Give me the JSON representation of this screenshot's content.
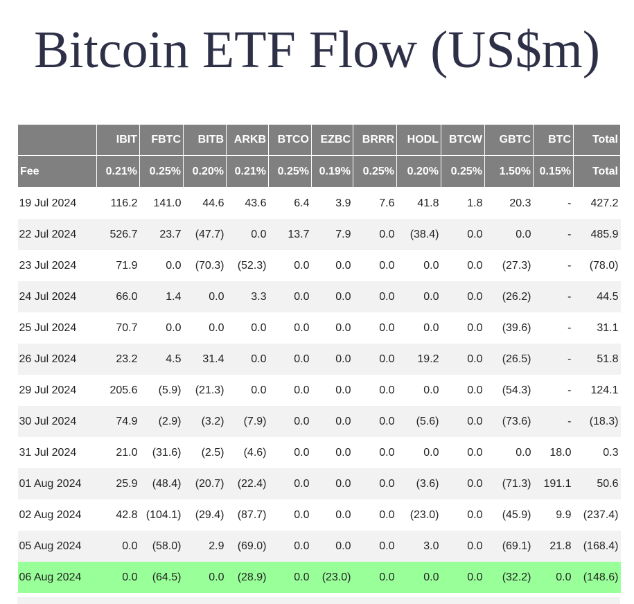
{
  "title": "Bitcoin ETF Flow (US$m)",
  "header": {
    "tickers": [
      "",
      "IBIT",
      "FBTC",
      "BITB",
      "ARKB",
      "BTCO",
      "EZBC",
      "BRRR",
      "HODL",
      "BTCW",
      "GBTC",
      "BTC",
      "Total"
    ],
    "fees": [
      "Fee",
      "0.21%",
      "0.25%",
      "0.20%",
      "0.21%",
      "0.25%",
      "0.19%",
      "0.25%",
      "0.20%",
      "0.25%",
      "1.50%",
      "0.15%",
      "Total"
    ]
  },
  "colors": {
    "header_bg": "#808080",
    "negative": "#e0271f",
    "latest_row_bg": "#99ff99",
    "title": "#2e3047"
  },
  "rows": [
    [
      "19 Jul 2024",
      "116.2",
      "141.0",
      "44.6",
      "43.6",
      "6.4",
      "3.9",
      "7.6",
      "41.8",
      "1.8",
      "20.3",
      "-",
      "427.2"
    ],
    [
      "22 Jul 2024",
      "526.7",
      "23.7",
      "(47.7)",
      "0.0",
      "13.7",
      "7.9",
      "0.0",
      "(38.4)",
      "0.0",
      "0.0",
      "-",
      "485.9"
    ],
    [
      "23 Jul 2024",
      "71.9",
      "0.0",
      "(70.3)",
      "(52.3)",
      "0.0",
      "0.0",
      "0.0",
      "0.0",
      "0.0",
      "(27.3)",
      "-",
      "(78.0)"
    ],
    [
      "24 Jul 2024",
      "66.0",
      "1.4",
      "0.0",
      "3.3",
      "0.0",
      "0.0",
      "0.0",
      "0.0",
      "0.0",
      "(26.2)",
      "-",
      "44.5"
    ],
    [
      "25 Jul 2024",
      "70.7",
      "0.0",
      "0.0",
      "0.0",
      "0.0",
      "0.0",
      "0.0",
      "0.0",
      "0.0",
      "(39.6)",
      "-",
      "31.1"
    ],
    [
      "26 Jul 2024",
      "23.2",
      "4.5",
      "31.4",
      "0.0",
      "0.0",
      "0.0",
      "0.0",
      "19.2",
      "0.0",
      "(26.5)",
      "-",
      "51.8"
    ],
    [
      "29 Jul 2024",
      "205.6",
      "(5.9)",
      "(21.3)",
      "0.0",
      "0.0",
      "0.0",
      "0.0",
      "0.0",
      "0.0",
      "(54.3)",
      "-",
      "124.1"
    ],
    [
      "30 Jul 2024",
      "74.9",
      "(2.9)",
      "(3.2)",
      "(7.9)",
      "0.0",
      "0.0",
      "0.0",
      "(5.6)",
      "0.0",
      "(73.6)",
      "-",
      "(18.3)"
    ],
    [
      "31 Jul 2024",
      "21.0",
      "(31.6)",
      "(2.5)",
      "(4.6)",
      "0.0",
      "0.0",
      "0.0",
      "0.0",
      "0.0",
      "0.0",
      "18.0",
      "0.3"
    ],
    [
      "01 Aug 2024",
      "25.9",
      "(48.4)",
      "(20.7)",
      "(22.4)",
      "0.0",
      "0.0",
      "0.0",
      "(3.6)",
      "0.0",
      "(71.3)",
      "191.1",
      "50.6"
    ],
    [
      "02 Aug 2024",
      "42.8",
      "(104.1)",
      "(29.4)",
      "(87.7)",
      "0.0",
      "0.0",
      "0.0",
      "(23.0)",
      "0.0",
      "(45.9)",
      "9.9",
      "(237.4)"
    ],
    [
      "05 Aug 2024",
      "0.0",
      "(58.0)",
      "2.9",
      "(69.0)",
      "0.0",
      "0.0",
      "0.0",
      "3.0",
      "0.0",
      "(69.1)",
      "21.8",
      "(168.4)"
    ],
    [
      "06 Aug 2024",
      "0.0",
      "(64.5)",
      "0.0",
      "(28.9)",
      "0.0",
      "(23.0)",
      "0.0",
      "0.0",
      "0.0",
      "(32.2)",
      "0.0",
      "(148.6)"
    ]
  ],
  "highlighted_row_index": 12
}
